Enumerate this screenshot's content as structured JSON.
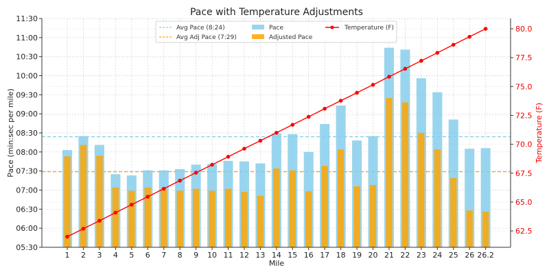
{
  "chart_data": {
    "type": "bar",
    "title": "Pace with Temperature Adjustments",
    "xlabel": "Mile",
    "ylabel": "Pace (min:sec per mile)",
    "y2label": "Temperature (F)",
    "categories": [
      "1",
      "2",
      "3",
      "4",
      "5",
      "6",
      "7",
      "8",
      "9",
      "10",
      "11",
      "12",
      "13",
      "14",
      "15",
      "16",
      "17",
      "18",
      "19",
      "20",
      "21",
      "22",
      "23",
      "24",
      "25",
      "26",
      "26.2"
    ],
    "series": [
      {
        "name": "Pace",
        "type": "bar",
        "color": "#87CEEB",
        "unit": "seconds",
        "values": [
          483,
          505,
          491,
          445,
          443,
          451,
          451,
          453,
          460,
          461,
          466,
          465,
          462,
          509,
          508,
          480,
          524,
          553,
          498,
          505,
          644,
          641,
          596,
          574,
          531,
          485,
          486
        ]
      },
      {
        "name": "Adjusted Pace",
        "type": "bar",
        "color": "#FFA500",
        "unit": "seconds",
        "values": [
          473,
          491,
          474,
          424,
          419,
          424,
          421,
          419,
          422,
          419,
          422,
          417,
          411,
          454,
          451,
          418,
          458,
          484,
          426,
          428,
          565,
          558,
          510,
          484,
          439,
          388,
          386
        ]
      },
      {
        "name": "Temperature (F)",
        "type": "line",
        "axis": "right",
        "color": "#FF0000",
        "values": [
          62.0,
          62.69,
          63.38,
          64.08,
          64.77,
          65.46,
          66.15,
          66.85,
          67.54,
          68.23,
          68.92,
          69.62,
          70.31,
          71.0,
          71.69,
          72.38,
          73.08,
          73.77,
          74.46,
          75.15,
          75.85,
          76.54,
          77.23,
          77.92,
          78.62,
          79.31,
          80.0
        ]
      }
    ],
    "reference_lines": [
      {
        "name": "Avg Pace (8:24)",
        "value": 504,
        "color": "#87CEEB"
      },
      {
        "name": "Avg Adj Pace (7:29)",
        "value": 449,
        "color": "#FFA500"
      }
    ],
    "ylim": [
      330,
      690
    ],
    "y2lim": [
      61.08,
      80.89
    ],
    "yticks": [
      "05:30",
      "06:00",
      "06:30",
      "07:00",
      "07:30",
      "08:00",
      "08:30",
      "09:00",
      "09:30",
      "10:00",
      "10:30",
      "11:00",
      "11:30"
    ],
    "y2ticks": [
      "62.5",
      "65.0",
      "67.5",
      "70.0",
      "72.5",
      "75.0",
      "77.5",
      "80.0"
    ],
    "legend_position": "top-center",
    "grid": true
  }
}
